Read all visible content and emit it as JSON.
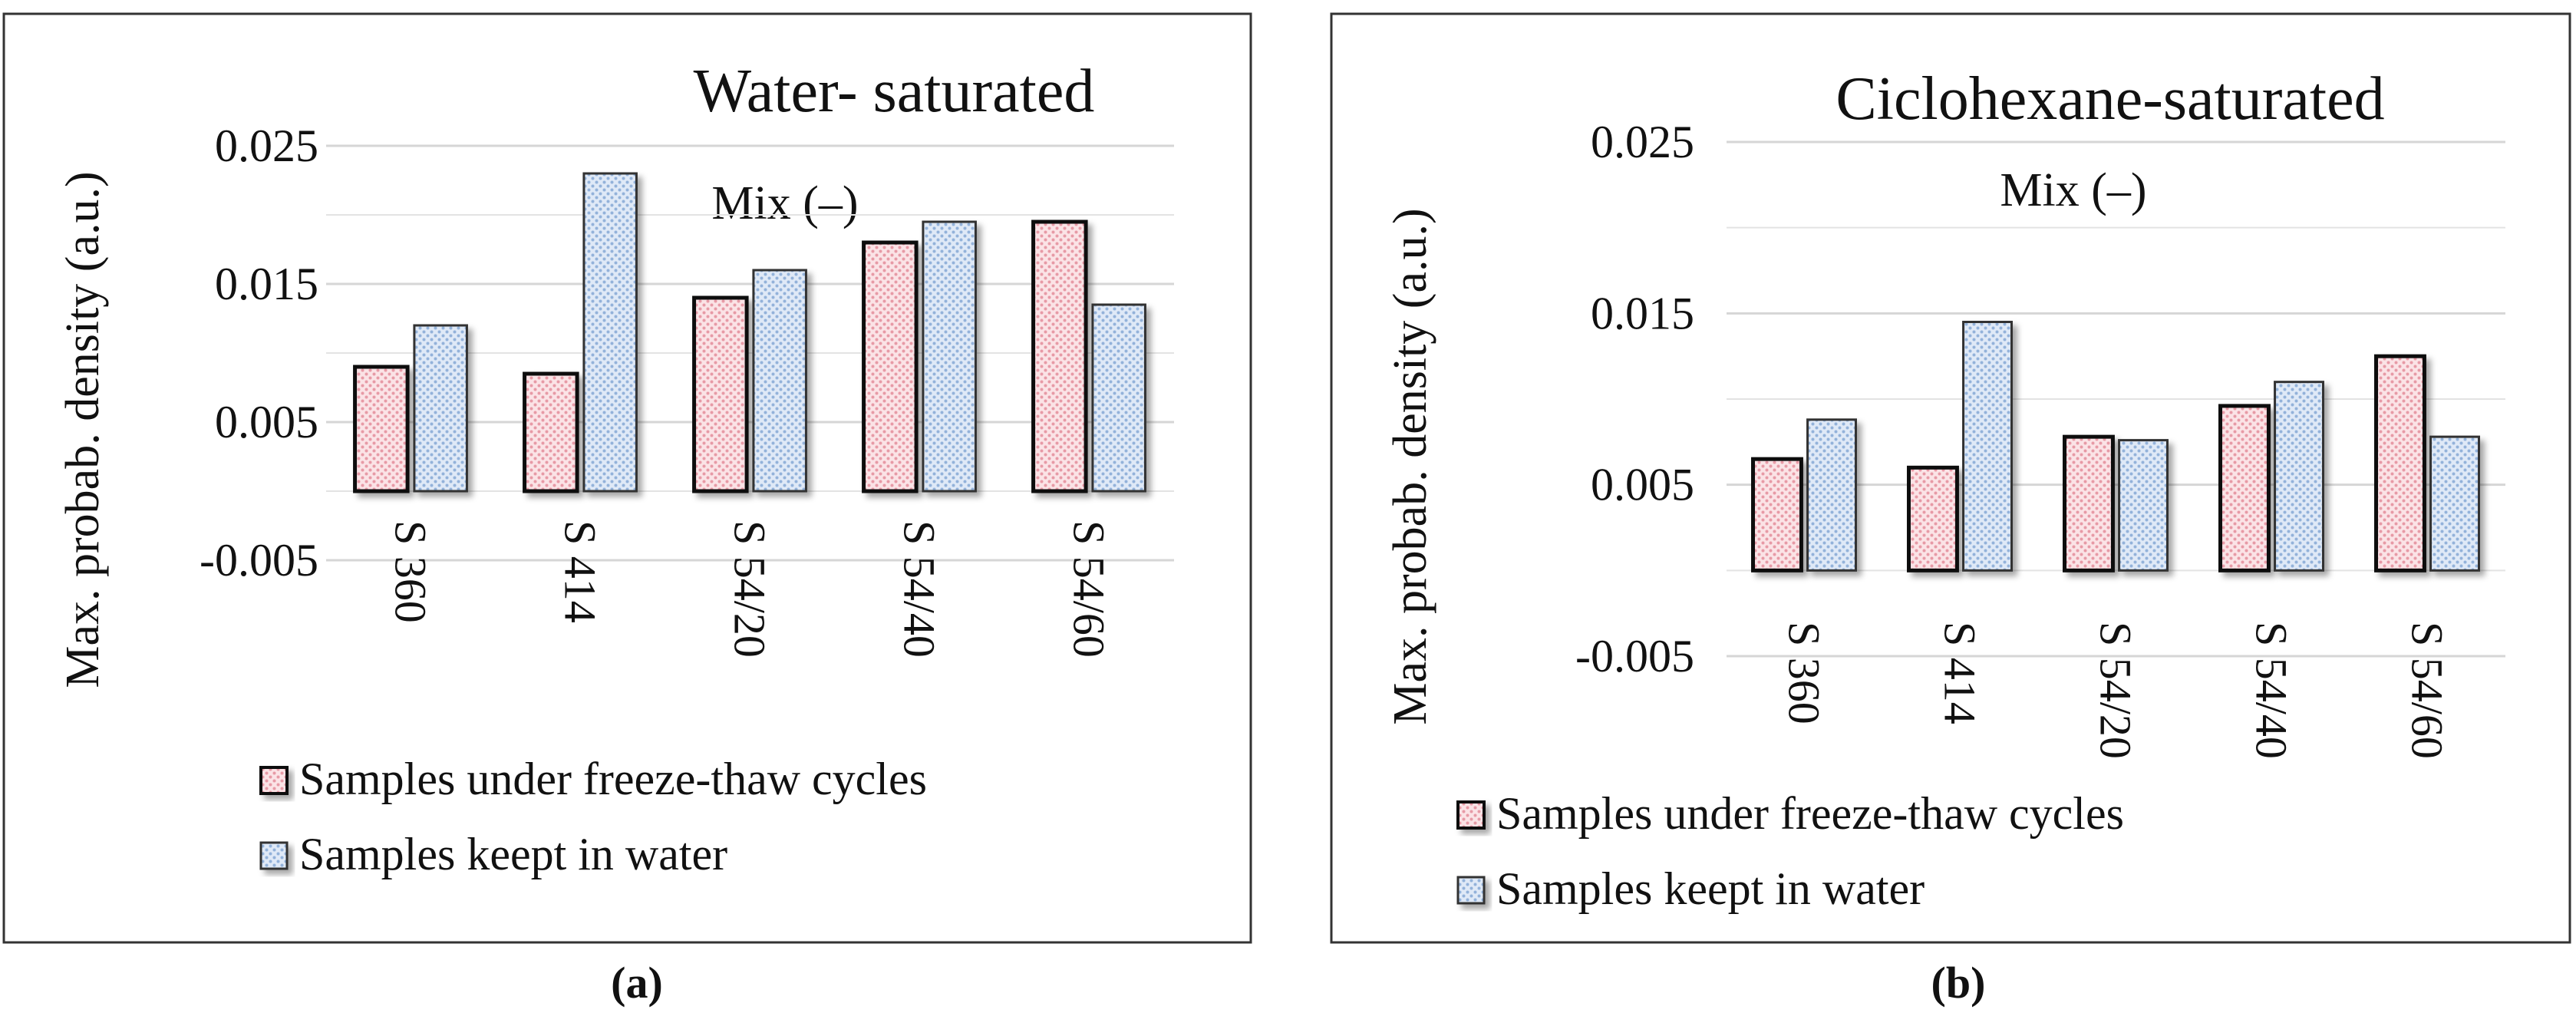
{
  "chart_data": [
    {
      "type": "bar",
      "title": "Water- saturated",
      "subtitle": "Mix (–)",
      "ylabel": "Max. probab. density (a.u.)",
      "xlabel": "",
      "panel_label": "(a)",
      "categories": [
        "S 360",
        "S 414",
        "S 54/20",
        "S 54/40",
        "S 54/60"
      ],
      "yticks": [
        "0.025",
        "0.015",
        "0.005",
        "-0.005"
      ],
      "ylim": [
        -0.005,
        0.025
      ],
      "grid": true,
      "legend_position": "bottom-left",
      "series": [
        {
          "name": "Samples under freeze-thaw cycles",
          "values": [
            0.009,
            0.0085,
            0.014,
            0.018,
            0.0195
          ],
          "color": "#f6c6cc"
        },
        {
          "name": "Samples keept in water",
          "values": [
            0.012,
            0.023,
            0.016,
            0.0195,
            0.0135
          ],
          "color": "#c4d6ef"
        }
      ]
    },
    {
      "type": "bar",
      "title": "Ciclohexane-saturated",
      "subtitle": "Mix (–)",
      "ylabel": "Max. probab. density (a.u.)",
      "xlabel": "",
      "panel_label": "(b)",
      "categories": [
        "S 360",
        "S 414",
        "S 54/20",
        "S 54/40",
        "S 54/60"
      ],
      "yticks": [
        "0.025",
        "0.015",
        "0.005",
        "-0.005"
      ],
      "ylim": [
        -0.005,
        0.025
      ],
      "grid": true,
      "legend_position": "bottom-left",
      "series": [
        {
          "name": "Samples under freeze-thaw cycles",
          "values": [
            0.0065,
            0.006,
            0.0078,
            0.0096,
            0.0125
          ],
          "color": "#f6c6cc"
        },
        {
          "name": "Samples keept in water",
          "values": [
            0.0088,
            0.0145,
            0.0076,
            0.011,
            0.0078
          ],
          "color": "#c4d6ef"
        }
      ]
    }
  ]
}
